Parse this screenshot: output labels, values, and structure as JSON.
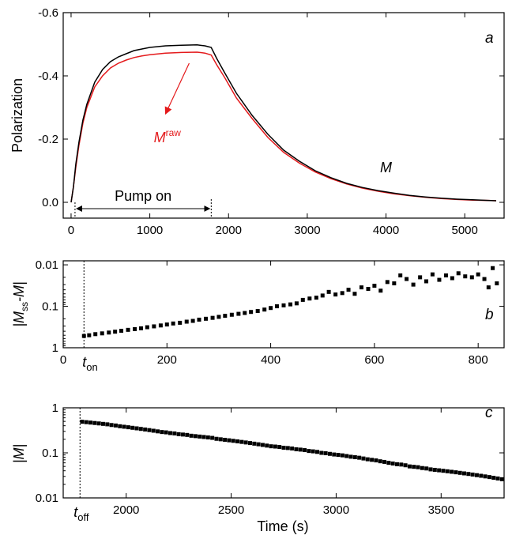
{
  "colors": {
    "M": "#000000",
    "M_raw": "#e41a1c",
    "markers": "#000000"
  },
  "chart_data": [
    {
      "panel": "a",
      "type": "line",
      "ylabel": "Polarization",
      "xlim": [
        -100,
        5500
      ],
      "ylim": [
        0.05,
        -0.6
      ],
      "xticks": [
        "0",
        "1000",
        "2000",
        "3000",
        "4000",
        "5000"
      ],
      "yticks": [
        "-0.6",
        "-0.4",
        "-0.2",
        "0.0"
      ],
      "series": [
        {
          "name": "M",
          "label_main": "M",
          "label_sup": "",
          "x": [
            0,
            30,
            60,
            100,
            150,
            200,
            300,
            400,
            500,
            600,
            700,
            800,
            900,
            1000,
            1200,
            1400,
            1600,
            1700,
            1780,
            1850,
            1950,
            2100,
            2300,
            2500,
            2700,
            2900,
            3100,
            3300,
            3500,
            3700,
            3900,
            4100,
            4300,
            4500,
            4700,
            4900,
            5100,
            5300,
            5400
          ],
          "y": [
            0.0,
            -0.05,
            -0.12,
            -0.19,
            -0.26,
            -0.31,
            -0.38,
            -0.42,
            -0.445,
            -0.46,
            -0.47,
            -0.48,
            -0.485,
            -0.49,
            -0.495,
            -0.497,
            -0.498,
            -0.495,
            -0.49,
            -0.455,
            -0.41,
            -0.345,
            -0.275,
            -0.215,
            -0.165,
            -0.13,
            -0.1,
            -0.078,
            -0.06,
            -0.047,
            -0.037,
            -0.029,
            -0.022,
            -0.017,
            -0.013,
            -0.01,
            -0.008,
            -0.006,
            -0.005
          ]
        },
        {
          "name": "M_raw",
          "label_main": "M",
          "label_sup": "raw",
          "x": [
            0,
            30,
            60,
            100,
            150,
            200,
            300,
            400,
            500,
            600,
            700,
            800,
            900,
            1000,
            1200,
            1400,
            1600,
            1700,
            1780,
            1850,
            1950,
            2100,
            2300,
            2500,
            2700,
            2900,
            3100,
            3300,
            3500,
            3700,
            3900,
            4100,
            4300,
            4500,
            4700,
            4900,
            5100,
            5300,
            5400
          ],
          "y": [
            0.0,
            -0.05,
            -0.11,
            -0.18,
            -0.25,
            -0.3,
            -0.365,
            -0.4,
            -0.425,
            -0.44,
            -0.45,
            -0.458,
            -0.463,
            -0.467,
            -0.472,
            -0.474,
            -0.475,
            -0.472,
            -0.466,
            -0.435,
            -0.395,
            -0.33,
            -0.265,
            -0.205,
            -0.158,
            -0.124,
            -0.096,
            -0.075,
            -0.058,
            -0.045,
            -0.035,
            -0.027,
            -0.021,
            -0.016,
            -0.012,
            -0.009,
            -0.007,
            -0.006,
            -0.005
          ]
        }
      ],
      "annotations": {
        "pump_label": "Pump on",
        "pump_start": 50,
        "pump_end": 1780,
        "panel_letter": "a"
      }
    },
    {
      "panel": "b",
      "type": "scatter",
      "ylabel_main": "|M",
      "ylabel_sub": "ss",
      "ylabel_tail": "-M|",
      "xlim": [
        0,
        850
      ],
      "ylim_log": [
        1,
        0.008
      ],
      "xticks": [
        "0",
        "200",
        "400",
        "600",
        "800"
      ],
      "yticks": [
        "0.01",
        "0.1",
        "1"
      ],
      "t_on": 40,
      "t_label_main": "t",
      "t_label_sub": "on",
      "panel_letter": "b",
      "points": [
        [
          40,
          0.52
        ],
        [
          50,
          0.5
        ],
        [
          62,
          0.47
        ],
        [
          75,
          0.45
        ],
        [
          88,
          0.43
        ],
        [
          100,
          0.41
        ],
        [
          112,
          0.39
        ],
        [
          125,
          0.37
        ],
        [
          138,
          0.355
        ],
        [
          150,
          0.34
        ],
        [
          162,
          0.32
        ],
        [
          175,
          0.305
        ],
        [
          188,
          0.29
        ],
        [
          200,
          0.275
        ],
        [
          212,
          0.26
        ],
        [
          225,
          0.25
        ],
        [
          238,
          0.235
        ],
        [
          250,
          0.225
        ],
        [
          262,
          0.21
        ],
        [
          275,
          0.2
        ],
        [
          288,
          0.19
        ],
        [
          300,
          0.18
        ],
        [
          312,
          0.17
        ],
        [
          325,
          0.16
        ],
        [
          338,
          0.152
        ],
        [
          350,
          0.145
        ],
        [
          362,
          0.137
        ],
        [
          375,
          0.13
        ],
        [
          388,
          0.12
        ],
        [
          400,
          0.11
        ],
        [
          412,
          0.1
        ],
        [
          425,
          0.095
        ],
        [
          438,
          0.09
        ],
        [
          450,
          0.085
        ],
        [
          462,
          0.07
        ],
        [
          475,
          0.065
        ],
        [
          488,
          0.062
        ],
        [
          500,
          0.055
        ],
        [
          512,
          0.045
        ],
        [
          525,
          0.052
        ],
        [
          538,
          0.048
        ],
        [
          550,
          0.04
        ],
        [
          562,
          0.05
        ],
        [
          575,
          0.035
        ],
        [
          588,
          0.038
        ],
        [
          600,
          0.032
        ],
        [
          612,
          0.042
        ],
        [
          625,
          0.026
        ],
        [
          638,
          0.028
        ],
        [
          650,
          0.018
        ],
        [
          662,
          0.022
        ],
        [
          675,
          0.03
        ],
        [
          688,
          0.02
        ],
        [
          700,
          0.025
        ],
        [
          712,
          0.017
        ],
        [
          725,
          0.023
        ],
        [
          738,
          0.018
        ],
        [
          750,
          0.021
        ],
        [
          762,
          0.016
        ],
        [
          775,
          0.019
        ],
        [
          788,
          0.02
        ],
        [
          800,
          0.017
        ],
        [
          812,
          0.022
        ],
        [
          820,
          0.035
        ],
        [
          828,
          0.012
        ],
        [
          836,
          0.028
        ]
      ]
    },
    {
      "panel": "c",
      "type": "scatter",
      "ylabel_main": "|M|",
      "xlim": [
        1700,
        3800
      ],
      "ylim_log": [
        0.01,
        1
      ],
      "xticks": [
        "2000",
        "2500",
        "3000",
        "3500"
      ],
      "yticks": [
        "1",
        "0.1",
        "0.01"
      ],
      "t_off": 1780,
      "t_label_main": "t",
      "t_label_sub": "off",
      "panel_letter": "c",
      "xlabel": "Time (s)",
      "points": [
        [
          1790,
          0.49
        ],
        [
          1810,
          0.48
        ],
        [
          1830,
          0.47
        ],
        [
          1850,
          0.46
        ],
        [
          1870,
          0.45
        ],
        [
          1890,
          0.44
        ],
        [
          1910,
          0.43
        ],
        [
          1930,
          0.415
        ],
        [
          1950,
          0.405
        ],
        [
          1970,
          0.39
        ],
        [
          1990,
          0.38
        ],
        [
          2010,
          0.37
        ],
        [
          2030,
          0.36
        ],
        [
          2050,
          0.35
        ],
        [
          2070,
          0.34
        ],
        [
          2090,
          0.33
        ],
        [
          2110,
          0.32
        ],
        [
          2130,
          0.31
        ],
        [
          2150,
          0.3
        ],
        [
          2170,
          0.29
        ],
        [
          2190,
          0.285
        ],
        [
          2210,
          0.275
        ],
        [
          2230,
          0.27
        ],
        [
          2250,
          0.26
        ],
        [
          2270,
          0.255
        ],
        [
          2290,
          0.25
        ],
        [
          2310,
          0.24
        ],
        [
          2330,
          0.235
        ],
        [
          2350,
          0.23
        ],
        [
          2370,
          0.225
        ],
        [
          2390,
          0.22
        ],
        [
          2410,
          0.215
        ],
        [
          2430,
          0.205
        ],
        [
          2450,
          0.2
        ],
        [
          2470,
          0.195
        ],
        [
          2490,
          0.19
        ],
        [
          2510,
          0.185
        ],
        [
          2530,
          0.18
        ],
        [
          2550,
          0.175
        ],
        [
          2570,
          0.17
        ],
        [
          2590,
          0.165
        ],
        [
          2610,
          0.16
        ],
        [
          2630,
          0.155
        ],
        [
          2650,
          0.15
        ],
        [
          2670,
          0.145
        ],
        [
          2690,
          0.14
        ],
        [
          2710,
          0.138
        ],
        [
          2730,
          0.135
        ],
        [
          2750,
          0.13
        ],
        [
          2770,
          0.128
        ],
        [
          2790,
          0.125
        ],
        [
          2810,
          0.12
        ],
        [
          2830,
          0.118
        ],
        [
          2850,
          0.115
        ],
        [
          2870,
          0.11
        ],
        [
          2890,
          0.108
        ],
        [
          2910,
          0.105
        ],
        [
          2930,
          0.1
        ],
        [
          2950,
          0.098
        ],
        [
          2970,
          0.095
        ],
        [
          2990,
          0.092
        ],
        [
          3010,
          0.09
        ],
        [
          3030,
          0.088
        ],
        [
          3050,
          0.085
        ],
        [
          3070,
          0.082
        ],
        [
          3090,
          0.08
        ],
        [
          3110,
          0.078
        ],
        [
          3130,
          0.075
        ],
        [
          3150,
          0.072
        ],
        [
          3170,
          0.07
        ],
        [
          3190,
          0.068
        ],
        [
          3210,
          0.065
        ],
        [
          3230,
          0.063
        ],
        [
          3250,
          0.06
        ],
        [
          3270,
          0.058
        ],
        [
          3290,
          0.056
        ],
        [
          3310,
          0.055
        ],
        [
          3330,
          0.053
        ],
        [
          3350,
          0.05
        ],
        [
          3370,
          0.049
        ],
        [
          3390,
          0.048
        ],
        [
          3410,
          0.046
        ],
        [
          3430,
          0.045
        ],
        [
          3450,
          0.043
        ],
        [
          3470,
          0.042
        ],
        [
          3490,
          0.041
        ],
        [
          3510,
          0.04
        ],
        [
          3530,
          0.039
        ],
        [
          3550,
          0.038
        ],
        [
          3570,
          0.037
        ],
        [
          3590,
          0.036
        ],
        [
          3610,
          0.035
        ],
        [
          3630,
          0.034
        ],
        [
          3650,
          0.033
        ],
        [
          3670,
          0.032
        ],
        [
          3690,
          0.031
        ],
        [
          3710,
          0.03
        ],
        [
          3730,
          0.029
        ],
        [
          3750,
          0.028
        ],
        [
          3770,
          0.027
        ],
        [
          3790,
          0.026
        ]
      ]
    }
  ]
}
